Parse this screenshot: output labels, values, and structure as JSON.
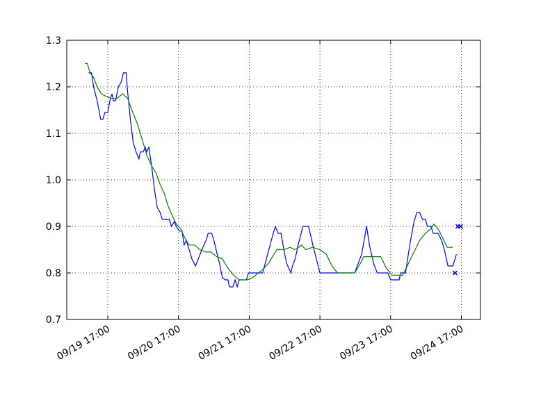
{
  "chart_data": {
    "type": "line",
    "xlim": [
      -0.58,
      5.27
    ],
    "xticks": [
      {
        "value": 0,
        "label": "09/19 17:00"
      },
      {
        "value": 1,
        "label": "09/20 17:00"
      },
      {
        "value": 2,
        "label": "09/21 17:00"
      },
      {
        "value": 3,
        "label": "09/22 17:00"
      },
      {
        "value": 4,
        "label": "09/23 17:00"
      },
      {
        "value": 5,
        "label": "09/24 17:00"
      }
    ],
    "ylim": [
      0.7,
      1.3
    ],
    "yticks": [
      0.7,
      0.8,
      0.9,
      {
        "value": 1.0,
        "label": "1.0"
      },
      1.1,
      1.2,
      1.3
    ],
    "grid": true,
    "series": [
      {
        "color": "#0000ff",
        "kind": "line",
        "x": [
          -0.27,
          -0.23,
          -0.2,
          -0.15,
          -0.1,
          -0.07,
          -0.04,
          0,
          0.03,
          0.06,
          0.08,
          0.11,
          0.15,
          0.19,
          0.22,
          0.26,
          0.28,
          0.32,
          0.36,
          0.4,
          0.44,
          0.46,
          0.5,
          0.53,
          0.55,
          0.58,
          0.62,
          0.66,
          0.7,
          0.74,
          0.77,
          0.81,
          0.87,
          0.9,
          0.94,
          0.97,
          1.01,
          1.05,
          1.08,
          1.11,
          1.15,
          1.19,
          1.24,
          1.28,
          1.33,
          1.39,
          1.42,
          1.47,
          1.5,
          1.54,
          1.58,
          1.62,
          1.66,
          1.7,
          1.72,
          1.77,
          1.8,
          1.83,
          1.86,
          1.92,
          1.96,
          1.99,
          2.11,
          2.19,
          2.26,
          2.33,
          2.37,
          2.41,
          2.45,
          2.49,
          2.53,
          2.59,
          2.61,
          2.65,
          2.7,
          2.76,
          2.84,
          2.9,
          2.95,
          3.0,
          3.09,
          3.29,
          3.49,
          3.59,
          3.66,
          3.7,
          3.76,
          3.81,
          3.96,
          4.0,
          4.12,
          4.14,
          4.21,
          4.27,
          4.33,
          4.37,
          4.41,
          4.45,
          4.49,
          4.52,
          4.57,
          4.6,
          4.67,
          4.72,
          4.76,
          4.81,
          4.88,
          4.93
        ],
        "values": [
          1.23,
          1.23,
          1.2,
          1.17,
          1.13,
          1.13,
          1.145,
          1.145,
          1.17,
          1.185,
          1.17,
          1.17,
          1.2,
          1.21,
          1.23,
          1.23,
          1.19,
          1.13,
          1.08,
          1.06,
          1.045,
          1.06,
          1.06,
          1.07,
          1.06,
          1.07,
          1.03,
          0.98,
          0.94,
          0.93,
          0.915,
          0.915,
          0.915,
          0.9,
          0.91,
          0.9,
          0.89,
          0.89,
          0.86,
          0.87,
          0.85,
          0.83,
          0.815,
          0.83,
          0.85,
          0.87,
          0.885,
          0.885,
          0.87,
          0.845,
          0.82,
          0.79,
          0.785,
          0.785,
          0.77,
          0.77,
          0.785,
          0.77,
          0.785,
          0.785,
          0.785,
          0.8,
          0.8,
          0.8,
          0.84,
          0.88,
          0.9,
          0.885,
          0.885,
          0.85,
          0.82,
          0.8,
          0.815,
          0.83,
          0.865,
          0.9,
          0.9,
          0.86,
          0.83,
          0.8,
          0.8,
          0.8,
          0.8,
          0.84,
          0.9,
          0.86,
          0.82,
          0.8,
          0.8,
          0.785,
          0.785,
          0.8,
          0.8,
          0.86,
          0.91,
          0.93,
          0.93,
          0.915,
          0.915,
          0.9,
          0.9,
          0.885,
          0.885,
          0.87,
          0.85,
          0.815,
          0.815,
          0.84
        ]
      },
      {
        "color": "#008000",
        "kind": "line",
        "x": [
          -0.32,
          -0.29,
          -0.25,
          -0.2,
          -0.15,
          -0.09,
          -0.03,
          0.05,
          0.13,
          0.21,
          0.28,
          0.34,
          0.42,
          0.5,
          0.56,
          0.62,
          0.68,
          0.74,
          0.8,
          0.85,
          0.92,
          0.97,
          1.03,
          1.09,
          1.15,
          1.23,
          1.3,
          1.39,
          1.46,
          1.54,
          1.62,
          1.7,
          1.78,
          1.86,
          1.97,
          2.05,
          2.13,
          2.21,
          2.27,
          2.33,
          2.39,
          2.49,
          2.58,
          2.64,
          2.7,
          2.74,
          2.8,
          2.9,
          3.0,
          3.09,
          3.17,
          3.25,
          3.39,
          3.49,
          3.57,
          3.62,
          3.86,
          3.94,
          4.02,
          4.17,
          4.25,
          4.33,
          4.41,
          4.49,
          4.57,
          4.61,
          4.67,
          4.72,
          4.8,
          4.88
        ],
        "values": [
          1.25,
          1.25,
          1.23,
          1.22,
          1.2,
          1.185,
          1.18,
          1.175,
          1.175,
          1.185,
          1.175,
          1.15,
          1.12,
          1.08,
          1.05,
          1.03,
          1.015,
          0.99,
          0.97,
          0.945,
          0.92,
          0.905,
          0.895,
          0.875,
          0.86,
          0.86,
          0.85,
          0.845,
          0.845,
          0.835,
          0.83,
          0.81,
          0.795,
          0.785,
          0.785,
          0.79,
          0.8,
          0.81,
          0.82,
          0.835,
          0.85,
          0.85,
          0.855,
          0.85,
          0.855,
          0.86,
          0.85,
          0.855,
          0.85,
          0.84,
          0.815,
          0.8,
          0.8,
          0.8,
          0.82,
          0.835,
          0.835,
          0.81,
          0.795,
          0.795,
          0.82,
          0.845,
          0.87,
          0.885,
          0.895,
          0.905,
          0.895,
          0.88,
          0.855,
          0.855
        ]
      },
      {
        "color": "#0000ff",
        "kind": "x-marker",
        "x": [
          4.91,
          4.95,
          4.99
        ],
        "values": [
          0.8,
          0.9,
          0.9
        ]
      }
    ]
  }
}
